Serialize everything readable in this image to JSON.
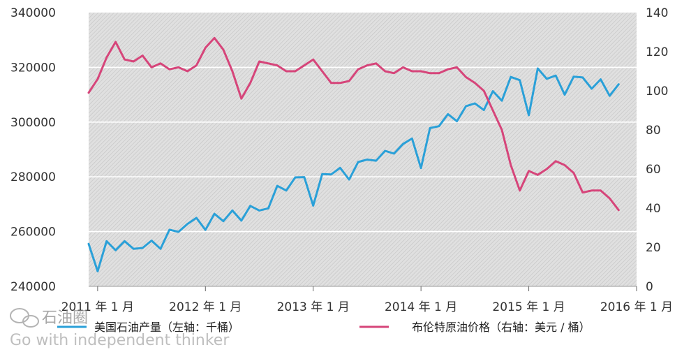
{
  "chart_data": {
    "type": "line",
    "title": "",
    "xlabel": "",
    "ylabel_left": "",
    "ylabel_right": "",
    "x_tick_labels": [
      "2011 年 1 月",
      "2012 年 1 月",
      "2013 年 1 月",
      "2014 年 1 月",
      "2015 年 1 月",
      "2016 年 1 月"
    ],
    "left_axis": {
      "ticks": [
        "340000",
        "320000",
        "300000",
        "280000",
        "260000",
        "240000"
      ],
      "ylim": [
        240000,
        340000
      ]
    },
    "right_axis": {
      "ticks": [
        "140",
        "120",
        "100",
        "80",
        "60",
        "40",
        "20",
        "0"
      ],
      "ylim": [
        0,
        140
      ]
    },
    "grid": "horizontal",
    "background": "diagonal-hatched gray",
    "legend_position": "bottom",
    "x_start": "2010-12",
    "x_end": "2016-01",
    "series": [
      {
        "name": "美国石油产量（左轴：千桶）",
        "axis": "left",
        "color": "#2aa0d8",
        "values": [
          255500,
          245500,
          256500,
          253200,
          256500,
          253700,
          254000,
          256700,
          253700,
          260700,
          259900,
          262800,
          265000,
          260600,
          266500,
          263800,
          267700,
          264000,
          269400,
          267700,
          268500,
          276700,
          275000,
          279800,
          279900,
          269500,
          281000,
          280900,
          283300,
          279000,
          285400,
          286300,
          285900,
          289500,
          288500,
          292000,
          294000,
          283200,
          297800,
          298500,
          302900,
          300300,
          305800,
          306800,
          304400,
          311300,
          307800,
          316500,
          315300,
          302500,
          319600,
          315800,
          317000,
          310000,
          316600,
          316300,
          312200,
          315600,
          309600,
          313800
        ]
      },
      {
        "name": "布伦特原油价格（右轴：美元 / 桶）",
        "axis": "right",
        "color": "#d6457a",
        "values": [
          99,
          106,
          117,
          125,
          116,
          115,
          118,
          112,
          114,
          111,
          112,
          110,
          113,
          122,
          127,
          121,
          110,
          96,
          104,
          115,
          114,
          113,
          110,
          110,
          113,
          116,
          110,
          104,
          104,
          105,
          111,
          113,
          114,
          110,
          109,
          112,
          110,
          110,
          109,
          109,
          111,
          112,
          107,
          104,
          100,
          90,
          80,
          62,
          49,
          59,
          57,
          60,
          64,
          62,
          58,
          48,
          49,
          49,
          45,
          39
        ]
      }
    ]
  },
  "watermark": {
    "logo_text": "石油圈",
    "tagline": "Go with independent thinker"
  }
}
